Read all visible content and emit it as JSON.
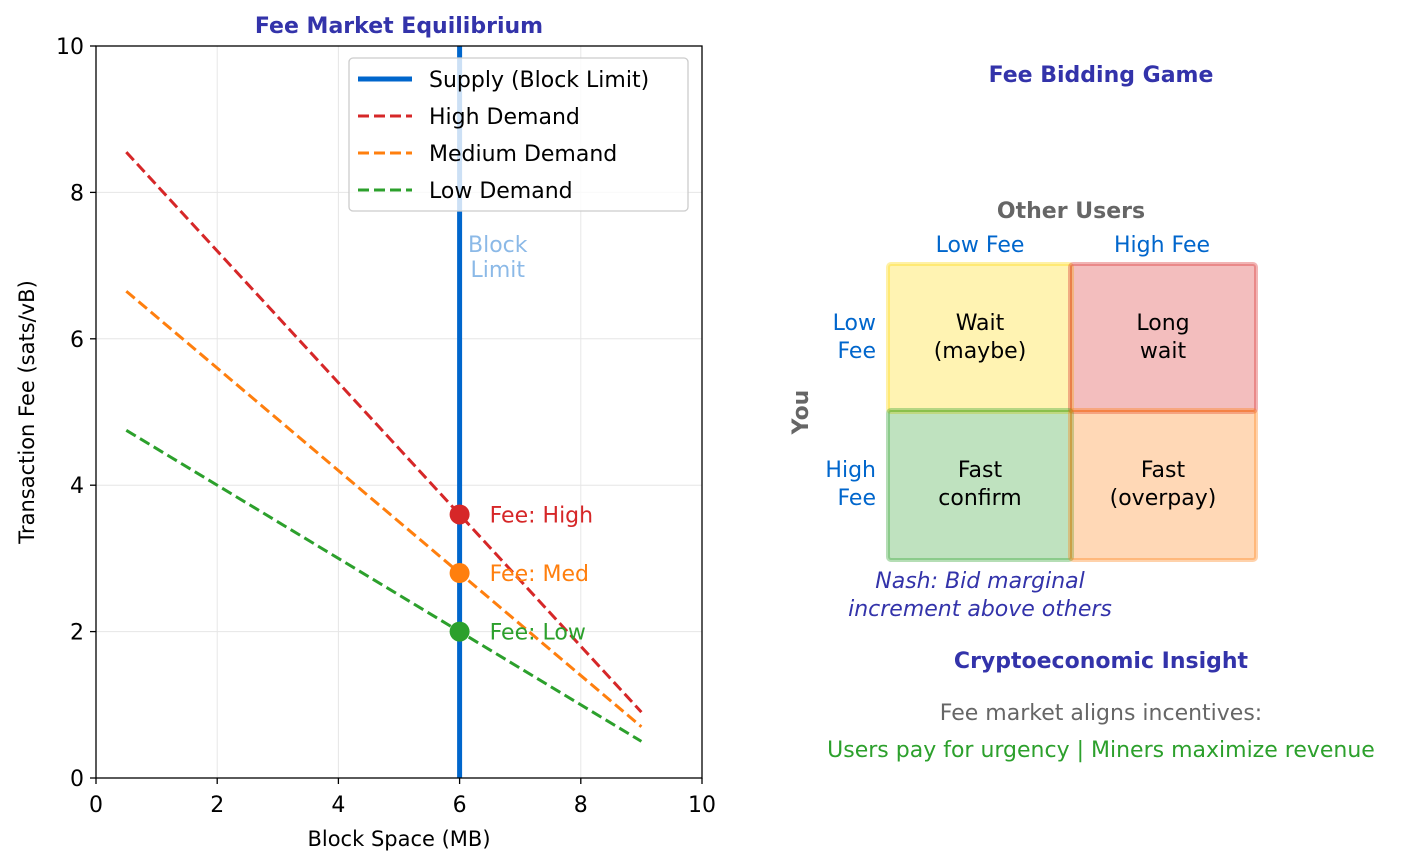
{
  "chart_data": [
    {
      "type": "line",
      "title": "Fee Market Equilibrium",
      "xlabel": "Block Space (MB)",
      "ylabel": "Transaction Fee (sats/vB)",
      "xlim": [
        0,
        10
      ],
      "ylim": [
        0,
        10
      ],
      "xticks": [
        "0",
        "2",
        "4",
        "6",
        "8",
        "10"
      ],
      "yticks": [
        "0",
        "2",
        "4",
        "6",
        "8",
        "10"
      ],
      "grid": true,
      "legend_placement": "upper-right",
      "series": [
        {
          "name": "Supply (Block Limit)",
          "style": "solid",
          "color": "#0066cc",
          "x": [
            6,
            6
          ],
          "y": [
            0,
            10
          ]
        },
        {
          "name": "High Demand",
          "style": "dashed",
          "color": "#d62728",
          "x": [
            0.5,
            9
          ],
          "y": [
            8.55,
            0.9
          ]
        },
        {
          "name": "Medium Demand",
          "style": "dashed",
          "color": "#ff7f0e",
          "x": [
            0.5,
            9
          ],
          "y": [
            6.65,
            0.7
          ]
        },
        {
          "name": "Low Demand",
          "style": "dashed",
          "color": "#2ca02c",
          "x": [
            0.5,
            9
          ],
          "y": [
            4.75,
            0.5
          ]
        }
      ],
      "points": [
        {
          "x": 6,
          "y": 3.6,
          "color": "#d62728",
          "label": "Fee: High"
        },
        {
          "x": 6,
          "y": 2.8,
          "color": "#ff7f0e",
          "label": "Fee: Med"
        },
        {
          "x": 6,
          "y": 2.0,
          "color": "#2ca02c",
          "label": "Fee: Low"
        }
      ],
      "annotations": [
        {
          "text": "Block\nLimit",
          "x": 6.3,
          "y": 8.5,
          "color": "#0066cc"
        }
      ]
    }
  ],
  "game": {
    "title": "Fee Bidding Game",
    "col_header": "Other Users",
    "row_header": "You",
    "col_labels": [
      "Low Fee",
      "High Fee"
    ],
    "row_labels": [
      "Low\nFee",
      "High\nFee"
    ],
    "cells": [
      {
        "text": "Wait\n(maybe)",
        "color": "#ffd700"
      },
      {
        "text": "Long\nwait",
        "color": "#d62728"
      },
      {
        "text": "Fast\nconfirm",
        "color": "#2ca02c"
      },
      {
        "text": "Fast\n(overpay)",
        "color": "#ff7f0e"
      }
    ],
    "nash": "Nash: Bid marginal\nincrement above others"
  },
  "insight": {
    "title": "Cryptoeconomic Insight",
    "line1": "Fee market aligns incentives:",
    "line2": "Users pay for urgency | Miners maximize revenue"
  },
  "colors": {
    "title": "#3333aa",
    "accent": "#0066cc",
    "gray": "#666666",
    "green": "#2ca02c"
  }
}
